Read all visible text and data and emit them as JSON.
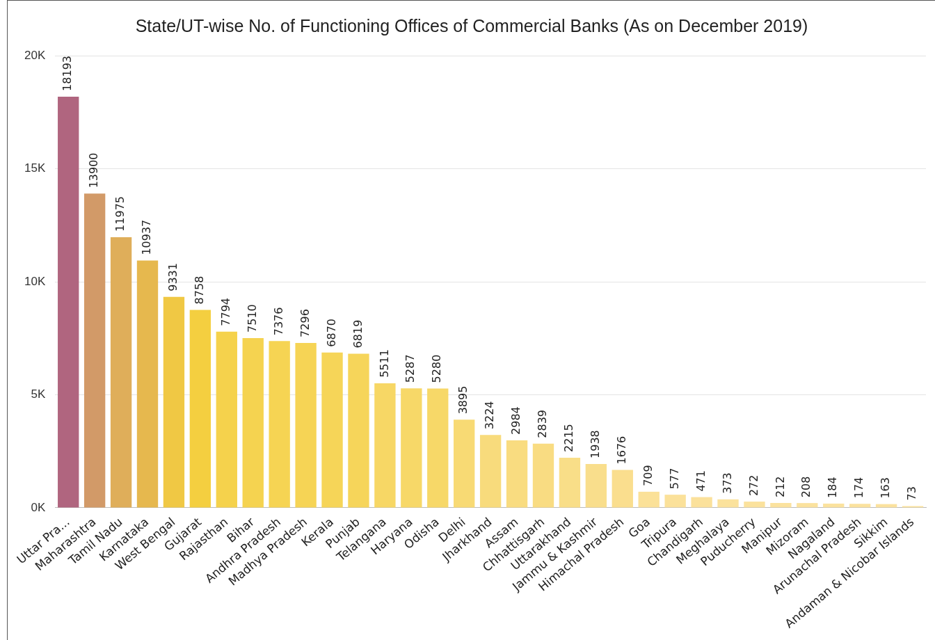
{
  "chart_data": {
    "type": "bar",
    "title": "State/UT-wise No. of Functioning Offices of Commercial Banks (As on December 2019)",
    "categories": [
      "Uttar Pra...",
      "Maharashtra",
      "Tamil Nadu",
      "Karnataka",
      "West Bengal",
      "Gujarat",
      "Rajasthan",
      "Bihar",
      "Andhra Pradesh",
      "Madhya Pradesh",
      "Kerala",
      "Punjab",
      "Telangana",
      "Haryana",
      "Odisha",
      "Delhi",
      "Jharkhand",
      "Assam",
      "Chhattisgarh",
      "Uttarakhand",
      "Jammu & Kashmir",
      "Himachal Pradesh",
      "Goa",
      "Tripura",
      "Chandigarh",
      "Meghalaya",
      "Puducherry",
      "Manipur",
      "Mizoram",
      "Nagaland",
      "Arunachal Pradesh",
      "Sikkim",
      "Andaman & Nicobar Islands"
    ],
    "values": [
      18193,
      13900,
      11975,
      10937,
      9331,
      8758,
      7794,
      7510,
      7376,
      7296,
      6870,
      6819,
      5511,
      5287,
      5280,
      3895,
      3224,
      2984,
      2839,
      2215,
      1938,
      1676,
      709,
      577,
      471,
      373,
      272,
      212,
      208,
      184,
      174,
      163,
      73
    ],
    "colors": [
      "#b0657f",
      "#d29a68",
      "#dfae5a",
      "#e6b84e",
      "#f0c844",
      "#f4cf40",
      "#f5d24c",
      "#f5d350",
      "#f6d453",
      "#f6d455",
      "#f6d558",
      "#f6d55a",
      "#f7d765",
      "#f7d868",
      "#f7d868",
      "#f8da74",
      "#f8db7c",
      "#f9dc80",
      "#f9dc82",
      "#f9de88",
      "#f9de8c",
      "#fade8e",
      "#fbe198",
      "#fbe19a",
      "#fbe19b",
      "#fbe29c",
      "#fbe29d",
      "#fbe29e",
      "#fbe29e",
      "#fbe29e",
      "#fbe29e",
      "#fbe29f",
      "#fbe39f"
    ],
    "ylim": [
      0,
      20000
    ],
    "yticks": [
      {
        "value": 0,
        "label": "0K"
      },
      {
        "value": 5000,
        "label": "5K"
      },
      {
        "value": 10000,
        "label": "10K"
      },
      {
        "value": 15000,
        "label": "15K"
      },
      {
        "value": 20000,
        "label": "20K"
      }
    ],
    "grid": "y",
    "data_labels": true,
    "legend": false
  }
}
